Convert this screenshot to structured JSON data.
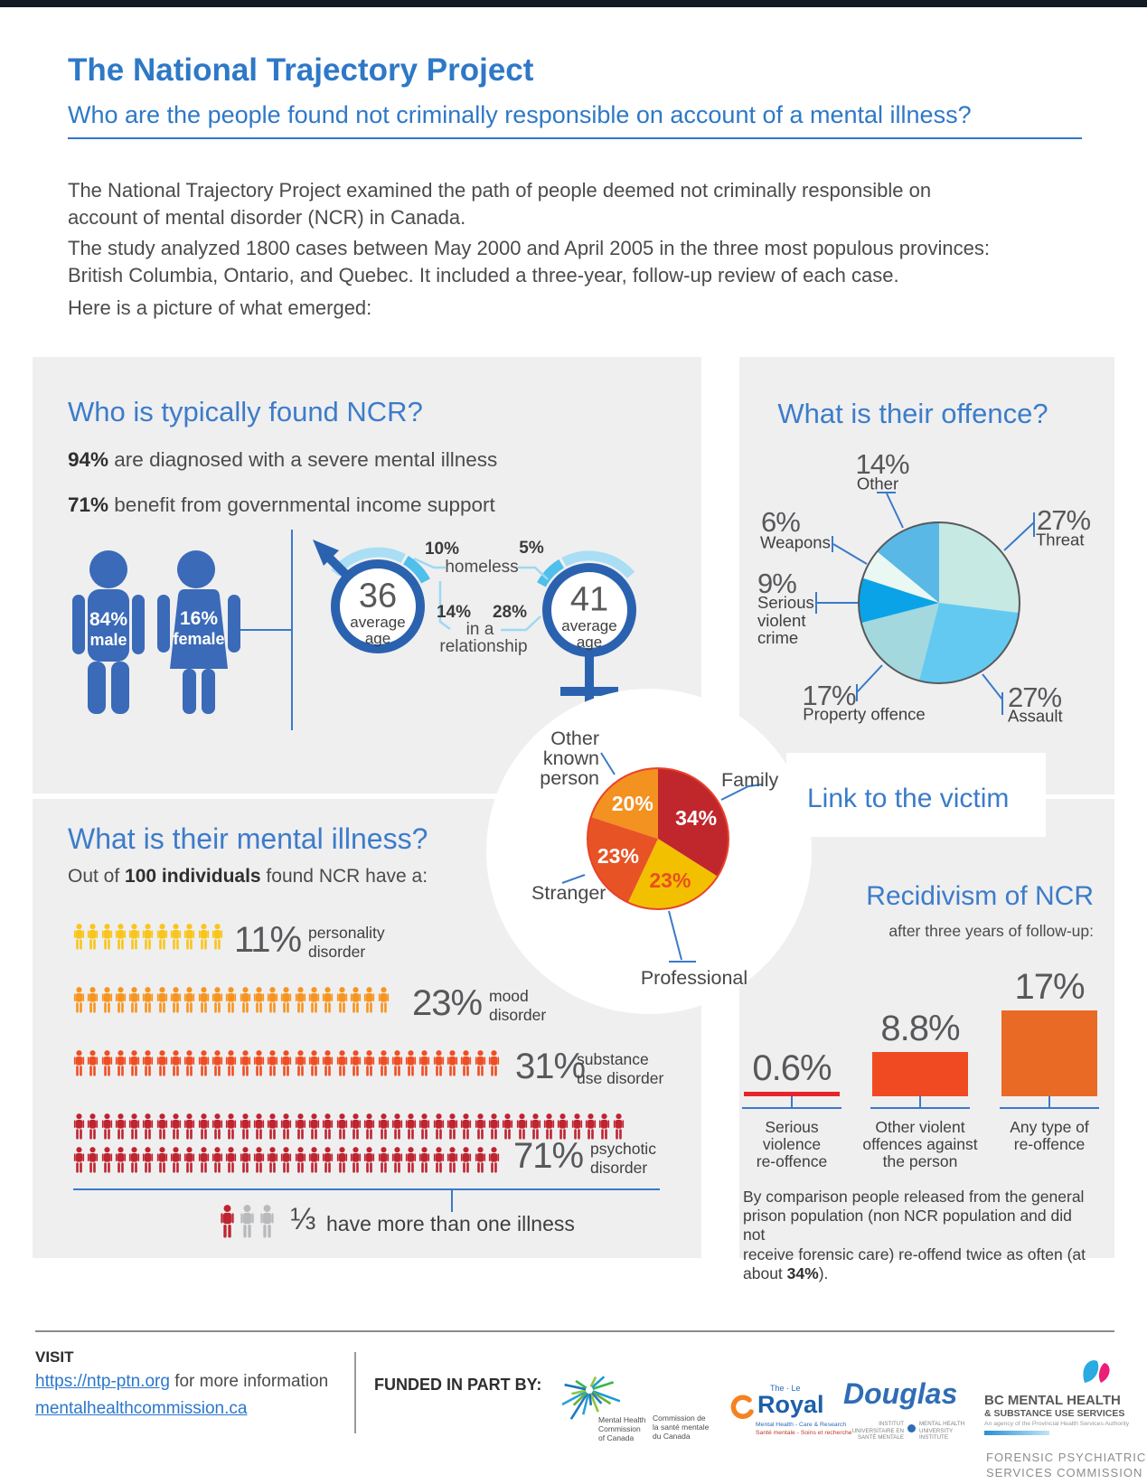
{
  "top": {
    "title": "The National Trajectory Project",
    "subtitle": "Who are the people found not criminally responsible on account of a mental illness?",
    "intro": [
      "The National Trajectory Project examined the path of people deemed not criminally responsible on\naccount of mental disorder (NCR) in Canada.",
      "The study analyzed 1800 cases between May 2000 and April 2005 in the three most populous provinces:\nBritish Columbia, Ontario, and Quebec. It included a three-year, follow-up review of each case.",
      "Here is a picture of what emerged:"
    ]
  },
  "who": {
    "heading": "Who is typically found NCR?",
    "facts": [
      {
        "stat": "94%",
        "text": " are diagnosed with a severe mental illness"
      },
      {
        "stat": "71%",
        "text": " benefit from governmental income support"
      }
    ],
    "male_share": {
      "pct": "84%",
      "label": "male"
    },
    "female_share": {
      "pct": "16%",
      "label": "female"
    },
    "male_age": {
      "value": "36",
      "line1": "average",
      "line2": "age"
    },
    "female_age": {
      "value": "41",
      "line1": "average",
      "line2": "age"
    },
    "homeless": {
      "male_pct": "10%",
      "female_pct": "5%",
      "label": "homeless"
    },
    "relationship": {
      "male_pct": "14%",
      "female_pct": "28%",
      "label_line1": "in a",
      "label_line2": "relationship"
    }
  },
  "offence": {
    "heading": "What is their offence?",
    "other": {
      "pct": "14%",
      "name": "Other"
    },
    "threat": {
      "pct": "27%",
      "name": "Threat"
    },
    "weapons": {
      "pct": "6%",
      "name": "Weapons"
    },
    "serious": {
      "pct": "9%",
      "name": "Serious\nviolent\ncrime"
    },
    "property": {
      "pct": "17%",
      "name": "Property offence"
    },
    "assault": {
      "pct": "27%",
      "name": "Assault"
    }
  },
  "victim": {
    "heading": "Link to the victim",
    "family": "Family",
    "professional": "Professional",
    "stranger": "Stranger",
    "other_known": "Other\nknown\nperson"
  },
  "illness": {
    "heading": "What is their mental illness?",
    "intro_pre": "Out of ",
    "intro_bold": "100 individuals",
    "intro_post": " found NCR have a:",
    "rows": [
      {
        "pct": "11%",
        "label": "personality\ndisorder"
      },
      {
        "pct": "23%",
        "label": "mood\ndisorder"
      },
      {
        "pct": "31%",
        "label": "substance\nuse disorder"
      },
      {
        "pct": "71%",
        "label": "psychotic\ndisorder"
      }
    ],
    "fraction": "⅓",
    "fraction_text": "have more than one illness"
  },
  "recidivism": {
    "heading": "Recidivism of NCR",
    "subtitle": "after three years of follow-up:",
    "footnote_pre": "By comparison people released from the general\nprison population (non NCR population and did not\nreceive forensic care) re-offend twice as often (at\nabout ",
    "footnote_bold": "34%",
    "footnote_post": ")."
  },
  "footer": {
    "visit_label": "VISIT",
    "link1": "https://ntp-ptn.org",
    "link1_suffix": " for more information",
    "link2": "mentalhealthcommission.ca",
    "funded_label": "FUNDED IN PART BY:",
    "logos": {
      "mhcc_en": "Mental Health\nCommission\nof Canada",
      "mhcc_fr": "Commission de\nla santé mentale\ndu Canada",
      "royal_the": "The · Le",
      "royal_name": "Royal",
      "royal_tag_en": "Mental Health - Care & Research",
      "royal_tag_fr": "Santé mentale - Soins et recherche",
      "douglas_name": "Douglas",
      "douglas_tag_fr": "INSTITUT\nUNIVERSITAIRE EN\nSANTÉ MENTALE",
      "douglas_tag_en": "MENTAL HEALTH\nUNIVERSITY\nINSTITUTE",
      "bc_line1": "BC MENTAL HEALTH",
      "bc_line2": "& SUBSTANCE USE SERVICES",
      "bc_line3": "An agency of the Provincial Health Services Authority",
      "bc_line4": "FORENSIC PSYCHIATRIC\nSERVICES COMMISSION"
    }
  },
  "colors": {
    "accent_blue": "#2e78c7",
    "heading_blue": "#3d7cc9",
    "panel_gray": "#efeff0",
    "connector_blue": "#3a7ac8",
    "figure_blue": "#3a6ab8",
    "symbol_blue": "#2a62b0",
    "arc_pale_blue": "#a9def4",
    "arc_bright_blue": "#4fbfeb"
  },
  "chart_data": [
    {
      "id": "offence_pie",
      "type": "pie",
      "title": "What is their offence?",
      "start_angle_deg": 0,
      "direction": "clockwise",
      "outline_color": "#58595b",
      "show_values_inside": false,
      "slices": [
        {
          "label": "Threat",
          "value": 27,
          "color": "#c6e9e3"
        },
        {
          "label": "Assault",
          "value": 27,
          "color": "#63c9f1"
        },
        {
          "label": "Property offence",
          "value": 17,
          "color": "#a2d8de"
        },
        {
          "label": "Serious violent crime",
          "value": 9,
          "color": "#0aa3e8"
        },
        {
          "label": "Weapons",
          "value": 6,
          "color": "#eaf8f4"
        },
        {
          "label": "Other",
          "value": 14,
          "color": "#59b8e5"
        }
      ]
    },
    {
      "id": "victim_pie",
      "type": "pie",
      "title": "Link to the victim",
      "start_angle_deg": 0,
      "direction": "clockwise",
      "outline_color": "#e8432a",
      "show_values_inside": true,
      "slices": [
        {
          "label": "Family",
          "value": 34,
          "color": "#c0272d",
          "value_label_color": "#ffffff"
        },
        {
          "label": "Professional",
          "value": 23,
          "color": "#f3c000",
          "value_label_color": "#e8501f"
        },
        {
          "label": "Stranger",
          "value": 23,
          "color": "#e85325",
          "value_label_color": "#ffffff"
        },
        {
          "label": "Other known person",
          "value": 20,
          "color": "#f39121",
          "value_label_color": "#ffffff"
        }
      ]
    },
    {
      "id": "illness_pictograph",
      "type": "pictograph",
      "title": "What is their mental illness?",
      "basis": "Out of 100 individuals found NCR",
      "rows": [
        {
          "label": "personality disorder",
          "value": 11,
          "color": "#f9c51d"
        },
        {
          "label": "mood disorder",
          "value": 23,
          "color": "#f7941e"
        },
        {
          "label": "substance use disorder",
          "value": 31,
          "color": "#ef4e23"
        },
        {
          "label": "psychotic disorder",
          "value": 71,
          "color": "#bf2430"
        }
      ],
      "note": "1/3 have more than one illness"
    },
    {
      "id": "recidivism_bars",
      "type": "bar",
      "title": "Recidivism of NCR",
      "subtitle": "after three years of follow-up:",
      "categories": [
        "Serious\nviolence\nre-offence",
        "Other violent\noffences against\nthe person",
        "Any type of\nre-offence"
      ],
      "values": [
        0.6,
        8.8,
        17
      ],
      "value_labels": [
        "0.6%",
        "8.8%",
        "17%"
      ],
      "bar_colors": [
        "#e8232a",
        "#f04a23",
        "#e96a24"
      ],
      "baseline_color": "#3a7ac8",
      "ylim": [
        0,
        20
      ],
      "comparison_note_value": "34%"
    }
  ]
}
